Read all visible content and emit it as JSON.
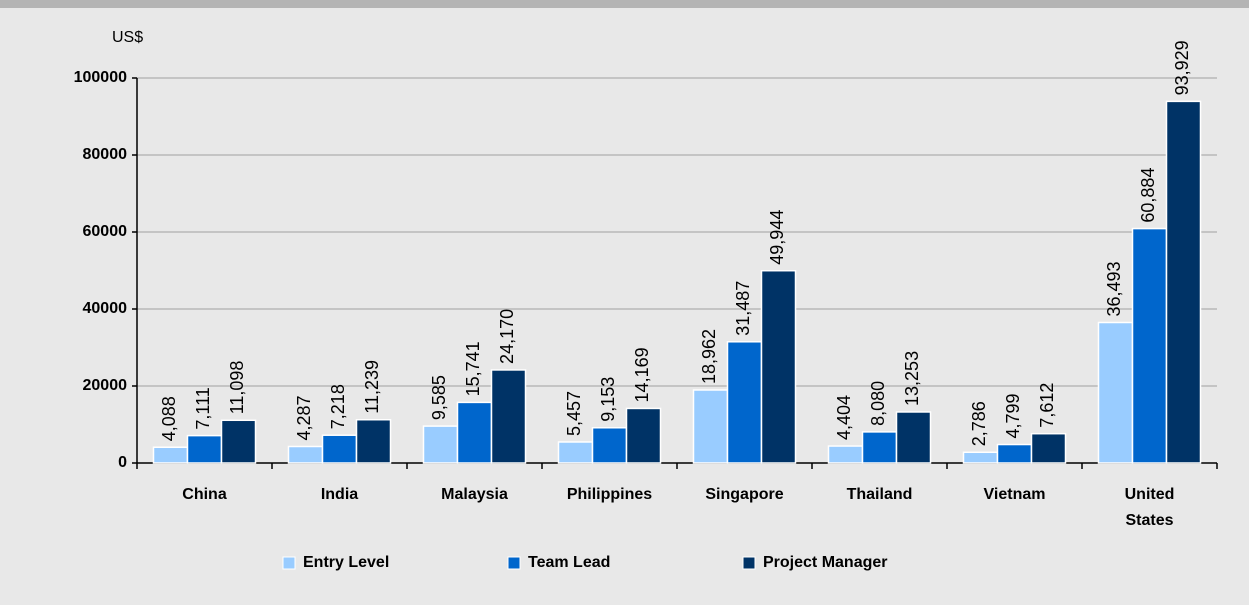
{
  "chart_data": {
    "type": "bar",
    "y_label": "US$",
    "categories": [
      "China",
      "India",
      "Malaysia",
      "Philippines",
      "Singapore",
      "Thailand",
      "Vietnam",
      "United States"
    ],
    "series": [
      {
        "name": "Entry Level",
        "color": "#99ccff",
        "values": [
          4088,
          4287,
          9585,
          5457,
          18962,
          4404,
          2786,
          36493
        ],
        "value_labels": [
          "4,088",
          "4,287",
          "9,585",
          "5,457",
          "18,962",
          "4,404",
          "2,786",
          "36,493"
        ]
      },
      {
        "name": "Team Lead",
        "color": "#0066cc",
        "values": [
          7111,
          7218,
          15741,
          9153,
          31487,
          8080,
          4799,
          60884
        ],
        "value_labels": [
          "7,111",
          "7,218",
          "15,741",
          "9,153",
          "31,487",
          "8,080",
          "4,799",
          "60,884"
        ]
      },
      {
        "name": "Project Manager",
        "color": "#003366",
        "values": [
          11098,
          11239,
          24170,
          14169,
          49944,
          13253,
          7612,
          93929
        ],
        "value_labels": [
          "11,098",
          "11,239",
          "24,170",
          "14,169",
          "49,944",
          "13,253",
          "7,612",
          "93,929"
        ]
      }
    ],
    "ylim": [
      0,
      100000
    ],
    "yticks": [
      0,
      20000,
      40000,
      60000,
      80000,
      100000
    ],
    "grid": true,
    "legend": "bottom"
  }
}
